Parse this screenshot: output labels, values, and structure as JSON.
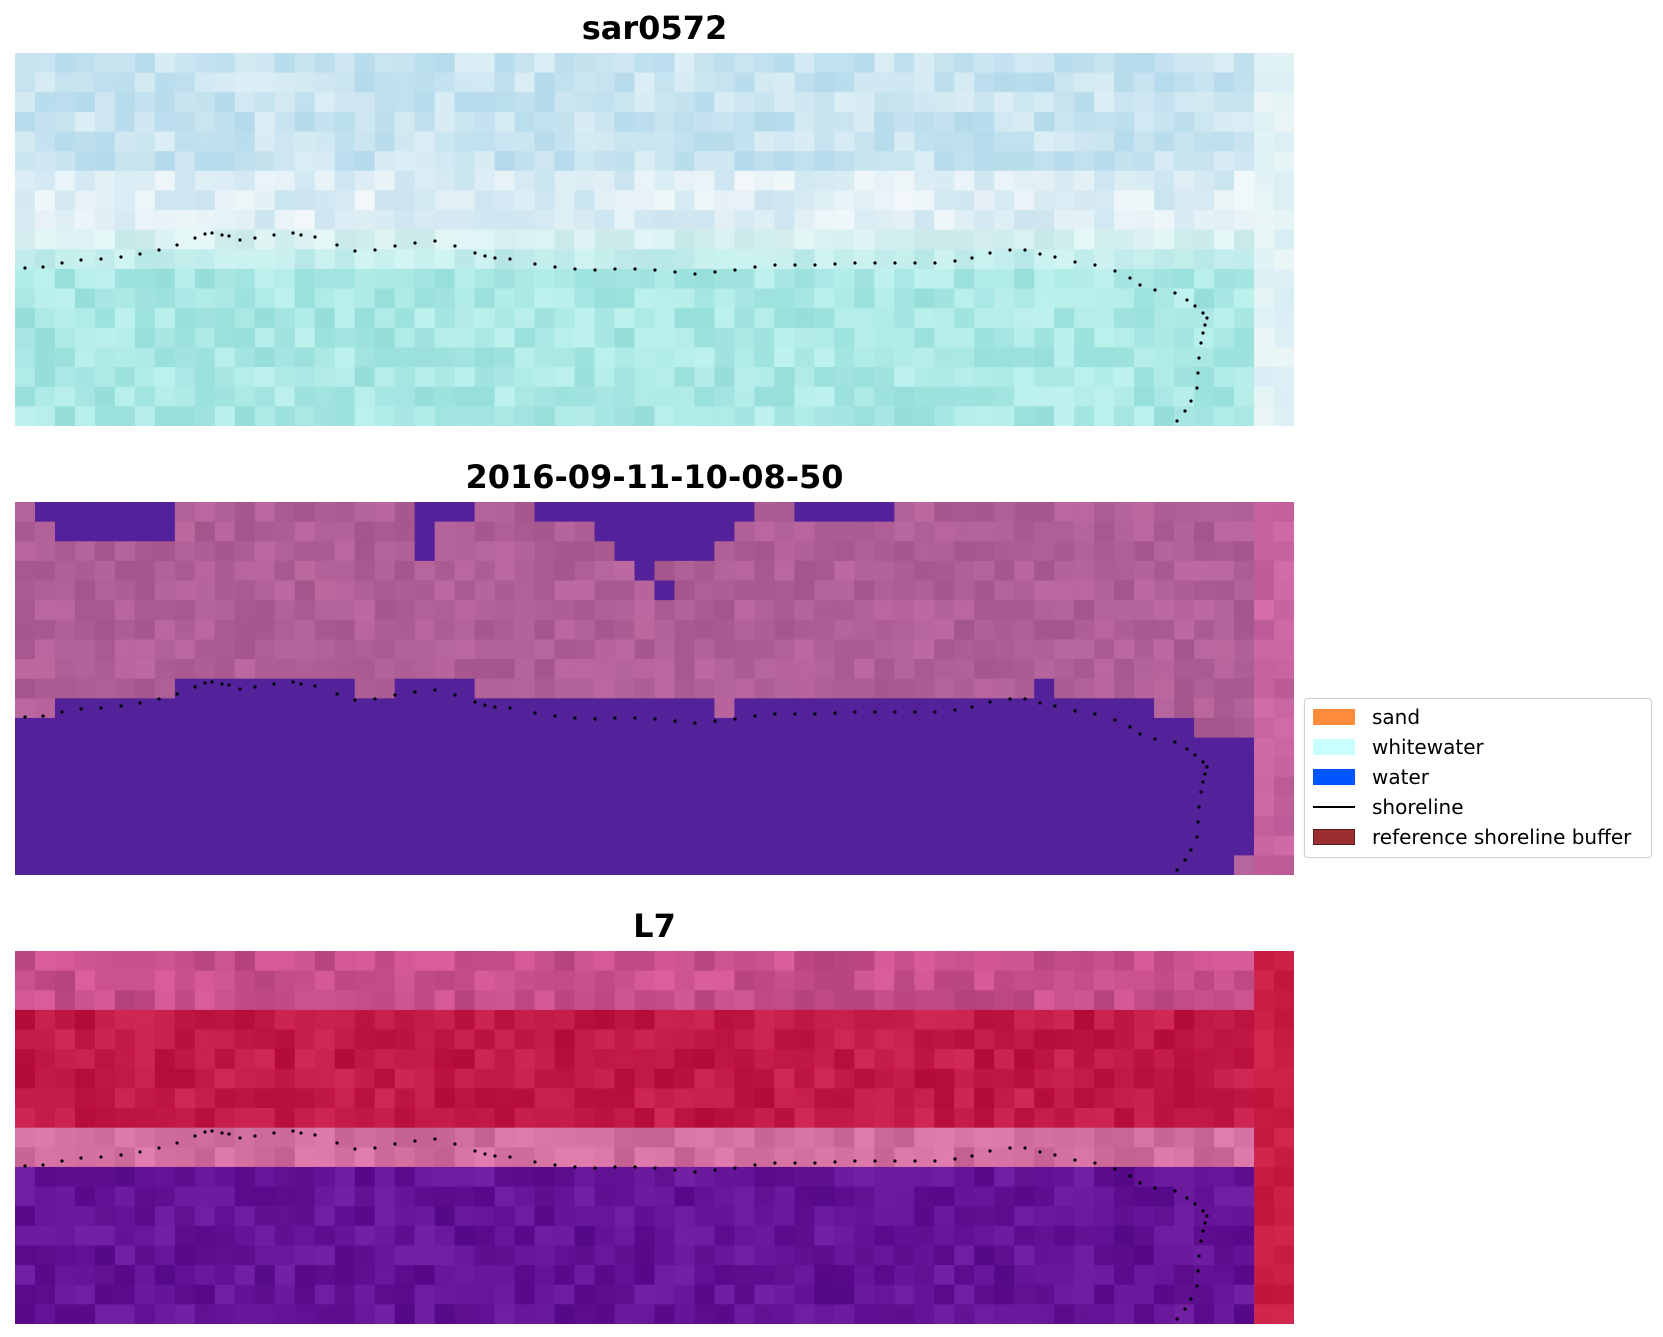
{
  "panels": [
    {
      "title": "sar0572",
      "layer": "sar"
    },
    {
      "title": "2016-09-11-10-08-50",
      "layer": "classified"
    },
    {
      "title": "L7",
      "layer": "index"
    }
  ],
  "legend": {
    "items": [
      {
        "label": "sand",
        "type": "patch",
        "color": "#ff8c3c"
      },
      {
        "label": "whitewater",
        "type": "patch",
        "color": "#c8ffff"
      },
      {
        "label": "water",
        "type": "patch",
        "color": "#0055ff"
      },
      {
        "label": "shoreline",
        "type": "line",
        "color": "#000000"
      },
      {
        "label": "reference shoreline buffer",
        "type": "patch",
        "color": "#9b2f2f"
      }
    ]
  },
  "colors": {
    "water_class": "#53229a",
    "shoreline_points": "#000000"
  }
}
